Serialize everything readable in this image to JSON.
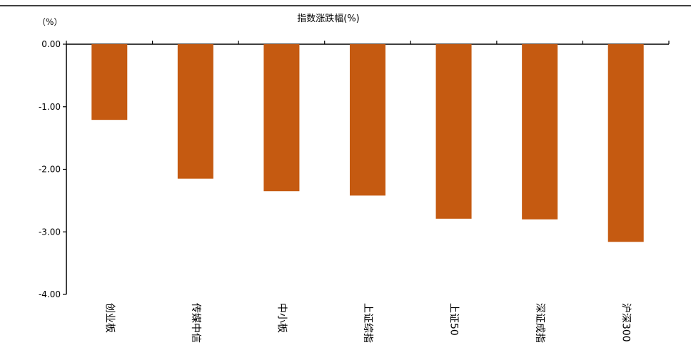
{
  "chart_data": {
    "type": "bar",
    "title": "指数涨跌幅(%)",
    "ylabel": "（%）",
    "xlabel": "",
    "categories": [
      "创业板",
      "传媒中信",
      "中小板",
      "上证综指",
      "上证50",
      "深证成指",
      "沪深300"
    ],
    "series": [
      {
        "values": [
          -1.21,
          -2.15,
          -2.35,
          -2.42,
          -2.79,
          -2.8,
          -3.16
        ]
      }
    ],
    "ylim": [
      -4.0,
      0.0
    ],
    "yticks": [
      "0.00",
      "-1.00",
      "-2.00",
      "-3.00",
      "-4.00"
    ],
    "bar_color": "#C55A11",
    "axis_color": "#000000",
    "grid": false,
    "legend": "none"
  }
}
